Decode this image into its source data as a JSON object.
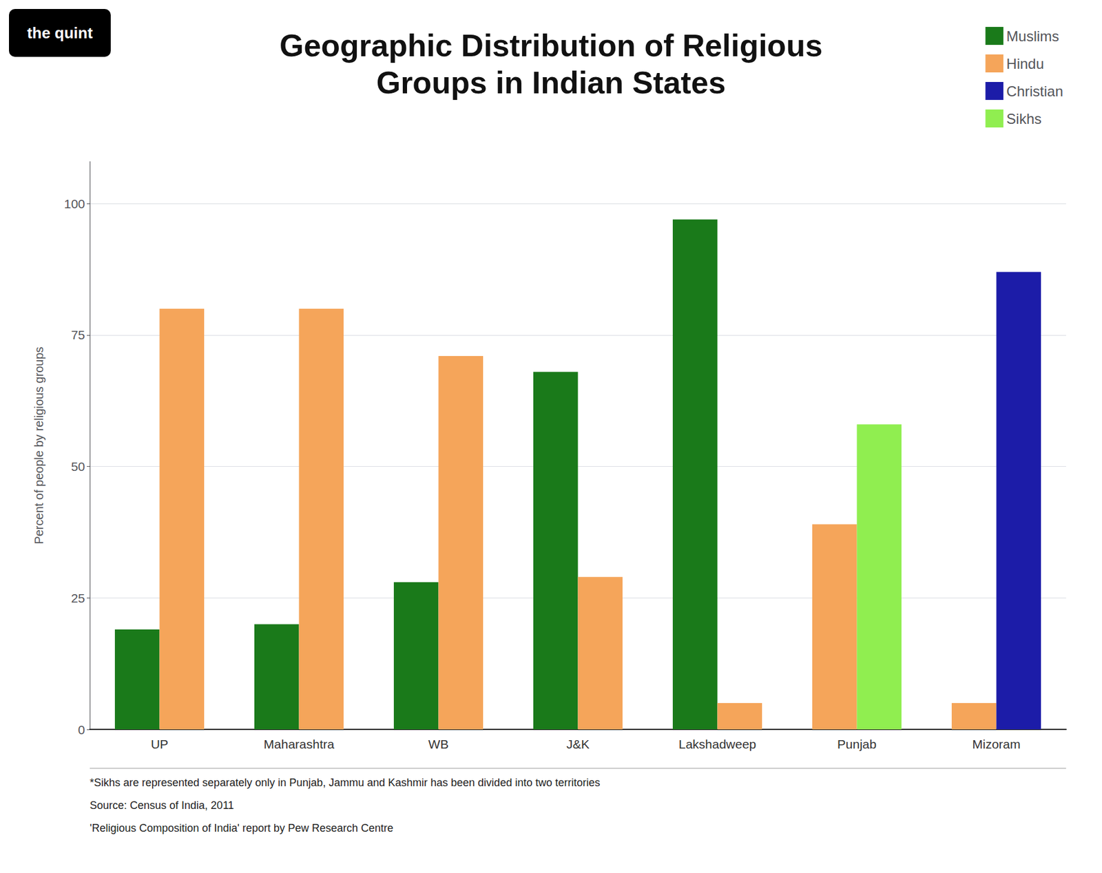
{
  "chart_data": {
    "type": "bar",
    "title": "Geographic Distribution of Religious\nGroups in Indian States",
    "ylabel": "Percent of people by religious groups",
    "categories": [
      "UP",
      "Maharashtra",
      "WB",
      "J&K",
      "Lakshadweep",
      "Punjab",
      "Mizoram"
    ],
    "series": [
      {
        "name": "Muslims",
        "color": "#1a7a1a",
        "values": [
          19,
          20,
          28,
          68,
          97,
          null,
          null
        ]
      },
      {
        "name": "Hindu",
        "color": "#f5a55a",
        "values": [
          80,
          80,
          71,
          29,
          5,
          39,
          5
        ]
      },
      {
        "name": "Christian",
        "color": "#1c1ca8",
        "values": [
          null,
          null,
          null,
          null,
          null,
          null,
          87
        ]
      },
      {
        "name": "Sikhs",
        "color": "#90ee50",
        "values": [
          null,
          null,
          null,
          null,
          null,
          58,
          null
        ]
      }
    ],
    "ylim": [
      0,
      108
    ],
    "yticks": [
      0,
      25,
      50,
      75,
      100
    ],
    "grid": true,
    "legend": "upper right",
    "annotations": [
      "the quint",
      "*Sikhs are represented separately only in Punjab, Jammu and Kashmir has been divided into two territories",
      "Source: Census of India, 2011",
      "'Religious Composition of India' report by Pew Research Centre"
    ]
  }
}
